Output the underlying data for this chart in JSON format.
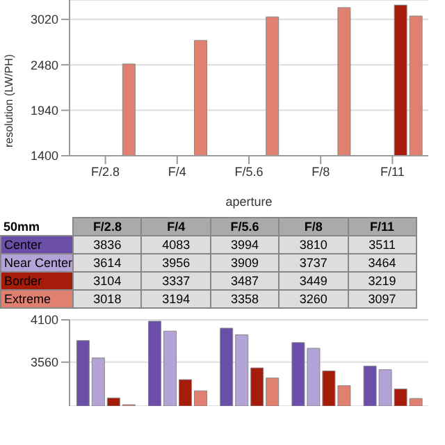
{
  "chart_data": [
    {
      "type": "bar",
      "xlabel": "aperture",
      "ylabel": "resolution (LW/PH)",
      "categories": [
        "F/2.8",
        "F/4",
        "F/5.6",
        "F/8",
        "F/11"
      ],
      "series": [
        {
          "color": "#6a4ea8",
          "values": [
            null,
            null,
            null,
            null,
            null
          ]
        },
        {
          "color": "#b3a3d6",
          "values": [
            null,
            null,
            null,
            null,
            null
          ]
        },
        {
          "color": "#a51c0a",
          "values": [
            null,
            null,
            null,
            null,
            3190
          ]
        },
        {
          "color": "#e08070",
          "values": [
            2490,
            2770,
            3050,
            3160,
            3060
          ]
        }
      ],
      "ylim": [
        1400,
        3250
      ],
      "yticks": [
        1400,
        1940,
        2480,
        3020
      ],
      "grid": "y"
    },
    {
      "type": "bar",
      "legend_title": "50mm",
      "categories": [
        "F/2.8",
        "F/4",
        "F/5.6",
        "F/8",
        "F/11"
      ],
      "series": [
        {
          "name": "Center",
          "color": "#6a4ea8",
          "values": [
            3836,
            4083,
            3994,
            3810,
            3511
          ]
        },
        {
          "name": "Near Center",
          "color": "#b3a3d6",
          "values": [
            3614,
            3956,
            3909,
            3737,
            3464
          ]
        },
        {
          "name": "Border",
          "color": "#a51c0a",
          "values": [
            3104,
            3337,
            3487,
            3449,
            3219
          ]
        },
        {
          "name": "Extreme",
          "color": "#e08070",
          "values": [
            3018,
            3194,
            3358,
            3260,
            3097
          ]
        }
      ],
      "ylim": [
        3000,
        4100
      ],
      "yticks": [
        3560,
        4100
      ],
      "grid": "y",
      "data_labels": true,
      "legend": "top",
      "tick_labels": "y"
    }
  ]
}
